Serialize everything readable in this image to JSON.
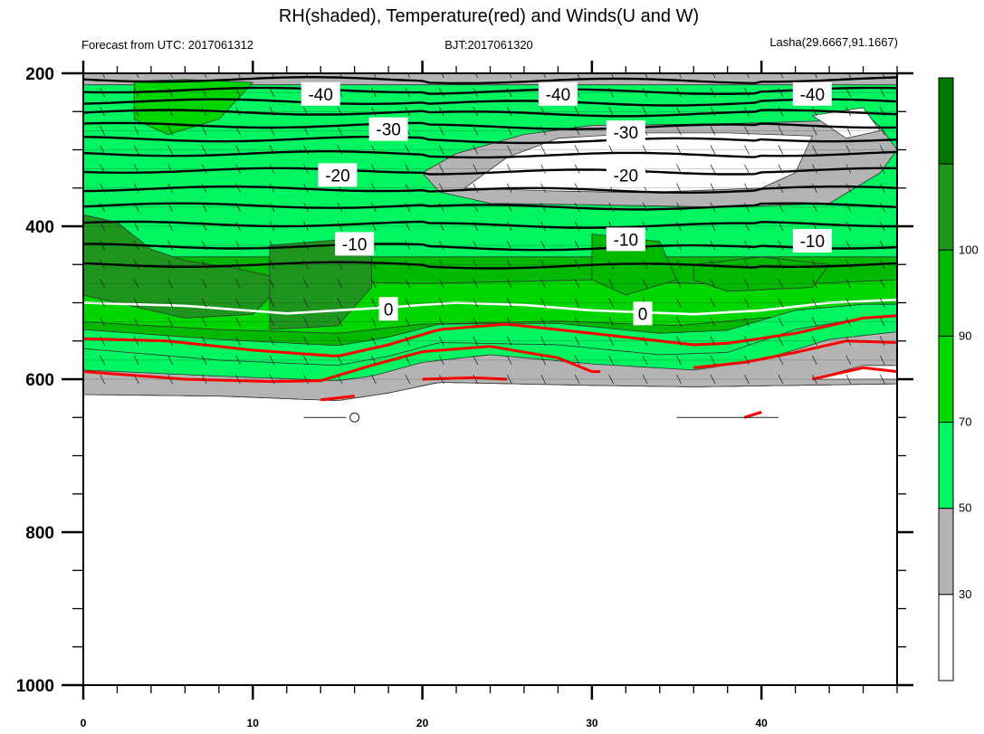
{
  "title": "RH(shaded), Temperature(red) and Winds(U and W)",
  "subtitle_left": "Forecast from UTC: 2017061312",
  "subtitle_center": "BJT:2017061320",
  "subtitle_right": "Lasha(29.6667,91.1667)",
  "chart_data": {
    "type": "heatmap",
    "title": "RH(shaded), Temperature(red) and Winds(U and W)",
    "xlabel": "",
    "ylabel": "",
    "xlim": [
      0,
      48
    ],
    "ylim": [
      1000,
      200
    ],
    "y_axis_reversed": true,
    "x_ticks": [
      "0",
      "10",
      "20",
      "30",
      "40"
    ],
    "y_ticks": [
      "200",
      "400",
      "600",
      "800",
      "1000"
    ],
    "colorbar": {
      "labels": [
        "30",
        "50",
        "70",
        "90",
        "100"
      ],
      "levels": [
        30,
        50,
        70,
        90,
        100
      ],
      "colors": [
        "#ffffff",
        "#b4b4b4",
        "#00f560",
        "#00d700",
        "#00b900",
        "#1e961e",
        "#007800"
      ]
    },
    "temperature_contours": [
      {
        "label": "-40",
        "pressure": 227
      },
      {
        "label": "-30",
        "pressure": 275
      },
      {
        "label": "-20",
        "pressure": 333
      },
      {
        "label": "-10",
        "pressure": 417
      },
      {
        "label": "0",
        "pressure": 510
      }
    ],
    "contour_labels": [
      {
        "text": "-40",
        "x": 14,
        "p": 227,
        "color": "#000000"
      },
      {
        "text": "-40",
        "x": 28,
        "p": 227,
        "color": "#000000"
      },
      {
        "text": "-40",
        "x": 43,
        "p": 227,
        "color": "#000000"
      },
      {
        "text": "-30",
        "x": 18,
        "p": 273,
        "color": "#000000"
      },
      {
        "text": "-30",
        "x": 32,
        "p": 277,
        "color": "#000000"
      },
      {
        "text": "-20",
        "x": 15,
        "p": 333,
        "color": "#000000"
      },
      {
        "text": "-20",
        "x": 32,
        "p": 333,
        "color": "#000000"
      },
      {
        "text": "-10",
        "x": 16,
        "p": 423,
        "color": "#000000"
      },
      {
        "text": "-10",
        "x": 32,
        "p": 417,
        "color": "#000000"
      },
      {
        "text": "-10",
        "x": 43,
        "p": 419,
        "color": "#000000"
      },
      {
        "text": "0",
        "x": 18,
        "p": 508,
        "color": "#000000"
      },
      {
        "text": "0",
        "x": 33,
        "p": 514,
        "color": "#000000"
      }
    ],
    "surface_pressure": 620,
    "wind_note": "wind barbs at forecast hours, pressure levels 200-600"
  },
  "colors": {
    "freezing_line": "#ffffff",
    "warm_isotherms": "#ff0000",
    "isotherms": "#000000"
  }
}
